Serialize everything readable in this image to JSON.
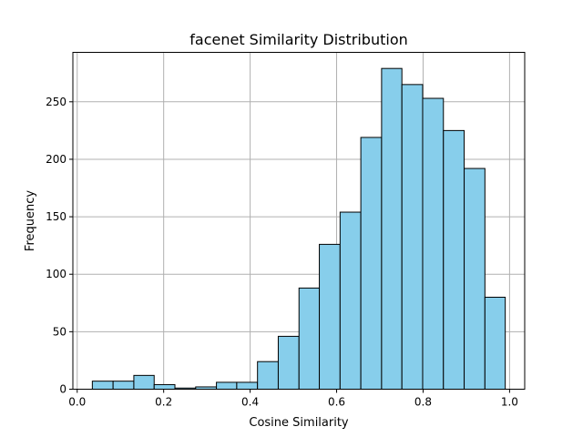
{
  "chart_data": {
    "type": "bar",
    "title": "facenet Similarity Distribution",
    "xlabel": "Cosine Similarity",
    "ylabel": "Frequency",
    "xlim": [
      -0.01,
      1.035
    ],
    "ylim": [
      0,
      293
    ],
    "grid": true,
    "bar_color": "#87ceeb",
    "edge_color": "#000000",
    "bin_edges": [
      0.035,
      0.083,
      0.131,
      0.178,
      0.226,
      0.274,
      0.322,
      0.369,
      0.417,
      0.465,
      0.513,
      0.56,
      0.608,
      0.656,
      0.704,
      0.751,
      0.799,
      0.847,
      0.895,
      0.943,
      0.99
    ],
    "values": [
      7,
      7,
      12,
      4,
      1,
      2,
      6,
      6,
      24,
      46,
      88,
      126,
      154,
      219,
      279,
      265,
      253,
      225,
      192,
      80
    ],
    "xticks": [
      0.0,
      0.2,
      0.4,
      0.6,
      0.8,
      1.0
    ],
    "xtick_labels": [
      "0.0",
      "0.2",
      "0.4",
      "0.6",
      "0.8",
      "1.0"
    ],
    "yticks": [
      0,
      50,
      100,
      150,
      200,
      250
    ],
    "ytick_labels": [
      "0",
      "50",
      "100",
      "150",
      "200",
      "250"
    ]
  }
}
